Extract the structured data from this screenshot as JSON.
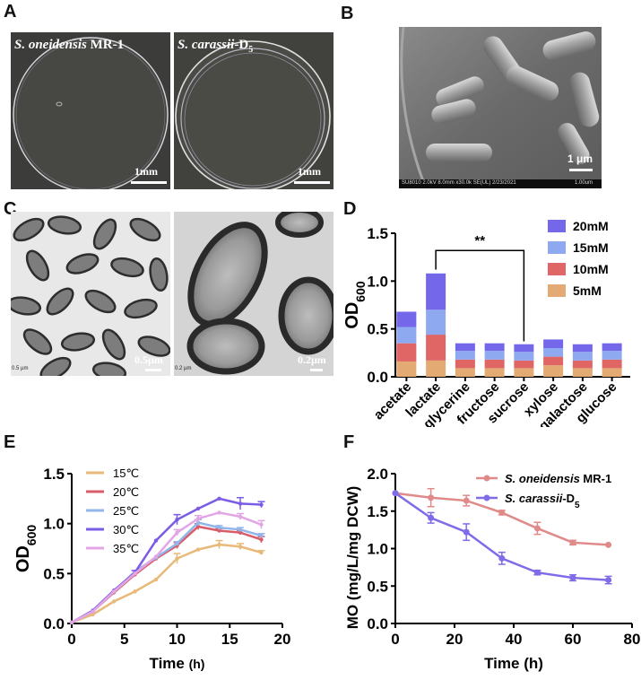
{
  "panels": {
    "a": {
      "letter": "A",
      "left_label_species": "S. oneidensis",
      "left_label_strain": " MR-1",
      "right_label_species": "S. carassii",
      "right_label_strain": "-D",
      "right_label_sub": "5",
      "left_scale": "1mm",
      "right_scale": "1mm"
    },
    "b": {
      "letter": "B",
      "scale": "1 μm",
      "caption": "SU8010 2.0kV 8.0mm x30.0k SE(UL) 2/23/2021",
      "caption_scale": "1.00um"
    },
    "c": {
      "letter": "C",
      "left_scale": "0.5μm",
      "right_scale": "0.2μm",
      "left_small": "0.5 µm",
      "right_small": "0.2 µm"
    },
    "d": {
      "letter": "D"
    },
    "e": {
      "letter": "E"
    },
    "f": {
      "letter": "F"
    }
  },
  "chart_data": [
    {
      "id": "D",
      "type": "bar",
      "stacked": true,
      "ylabel": "OD",
      "ylabel_sub": "600",
      "ylim": [
        0,
        1.5
      ],
      "yticks": [
        "0.0",
        "0.5",
        "1.0",
        "1.5"
      ],
      "categories": [
        "acetate",
        "lactate",
        "glycerine",
        "fructose",
        "sucrose",
        "xylose",
        "galactose",
        "glucose"
      ],
      "series": [
        {
          "name": "5mM",
          "color": "#E3AA74",
          "values": [
            0.16,
            0.17,
            0.09,
            0.09,
            0.09,
            0.12,
            0.09,
            0.09
          ]
        },
        {
          "name": "10mM",
          "color": "#E06666",
          "values": [
            0.19,
            0.27,
            0.09,
            0.09,
            0.08,
            0.09,
            0.08,
            0.09
          ]
        },
        {
          "name": "15mM",
          "color": "#8EA9F0",
          "values": [
            0.17,
            0.26,
            0.09,
            0.09,
            0.09,
            0.09,
            0.09,
            0.09
          ]
        },
        {
          "name": "20mM",
          "color": "#7467EA",
          "values": [
            0.16,
            0.38,
            0.08,
            0.08,
            0.08,
            0.09,
            0.08,
            0.08
          ]
        }
      ],
      "legend_order": [
        "20mM",
        "15mM",
        "10mM",
        "5mM"
      ],
      "annotation": "**"
    },
    {
      "id": "E",
      "type": "line",
      "xlabel": "Time",
      "xlabel_unit": "(h)",
      "ylabel": "OD",
      "ylabel_sub": "600",
      "xlim": [
        0,
        20
      ],
      "ylim": [
        0,
        1.5
      ],
      "xticks": [
        "0",
        "5",
        "10",
        "15",
        "20"
      ],
      "yticks": [
        "0.0",
        "0.5",
        "1.0",
        "1.5"
      ],
      "x": [
        0,
        2,
        4,
        6,
        8,
        10,
        12,
        14,
        16,
        18
      ],
      "series": [
        {
          "name": "15℃",
          "color": "#E8B978",
          "values": [
            0.01,
            0.09,
            0.22,
            0.32,
            0.44,
            0.65,
            0.74,
            0.79,
            0.77,
            0.71
          ],
          "err": [
            0,
            0,
            0,
            0,
            0,
            0.05,
            0,
            0.04,
            0.03,
            0.02
          ]
        },
        {
          "name": "20℃",
          "color": "#D95C6A",
          "values": [
            0.01,
            0.12,
            0.31,
            0.49,
            0.65,
            0.78,
            0.97,
            0.93,
            0.91,
            0.84
          ],
          "err": [
            0,
            0,
            0,
            0,
            0,
            0.03,
            0.03,
            0.02,
            0.02,
            0.03
          ]
        },
        {
          "name": "25℃",
          "color": "#92B6EA",
          "values": [
            0.01,
            0.12,
            0.32,
            0.52,
            0.66,
            0.8,
            1.01,
            0.96,
            0.94,
            0.88
          ],
          "err": [
            0,
            0,
            0,
            0,
            0,
            0.02,
            0.03,
            0.02,
            0.02,
            0.02
          ]
        },
        {
          "name": "30℃",
          "color": "#7A5CE6",
          "values": [
            0.01,
            0.13,
            0.33,
            0.51,
            0.83,
            1.04,
            1.15,
            1.25,
            1.2,
            1.19
          ],
          "err": [
            0,
            0,
            0,
            0.02,
            0,
            0.05,
            0,
            0,
            0.06,
            0.03
          ]
        },
        {
          "name": "35℃",
          "color": "#E3A6E5",
          "values": [
            0.01,
            0.12,
            0.32,
            0.5,
            0.67,
            0.91,
            1.05,
            1.11,
            1.07,
            0.99
          ],
          "err": [
            0,
            0,
            0,
            0,
            0,
            0.03,
            0.03,
            0,
            0.03,
            0.04
          ]
        }
      ]
    },
    {
      "id": "F",
      "type": "line",
      "xlabel": "Time (h)",
      "ylabel": "MO (mg/L/mg DCW)",
      "xlim": [
        0,
        80
      ],
      "ylim": [
        0,
        2.0
      ],
      "xticks": [
        "0",
        "20",
        "40",
        "60",
        "80"
      ],
      "yticks": [
        "0.0",
        "0.5",
        "1.0",
        "1.5",
        "2.0"
      ],
      "x": [
        0,
        12,
        24,
        36,
        48,
        60,
        72
      ],
      "series": [
        {
          "name_species": "S. oneidensis",
          "name_strain": " MR-1",
          "color": "#E08A8A",
          "values": [
            1.74,
            1.68,
            1.64,
            1.48,
            1.27,
            1.08,
            1.05
          ],
          "err": [
            0,
            0.12,
            0.07,
            0.03,
            0.08,
            0.03,
            0
          ]
        },
        {
          "name_species": "S. carassii",
          "name_strain": "-D",
          "name_sub": "5",
          "color": "#7F6CE8",
          "values": [
            1.74,
            1.41,
            1.22,
            0.87,
            0.68,
            0.61,
            0.58
          ],
          "err": [
            0,
            0.07,
            0.11,
            0.08,
            0.03,
            0.04,
            0.05
          ]
        }
      ]
    }
  ]
}
